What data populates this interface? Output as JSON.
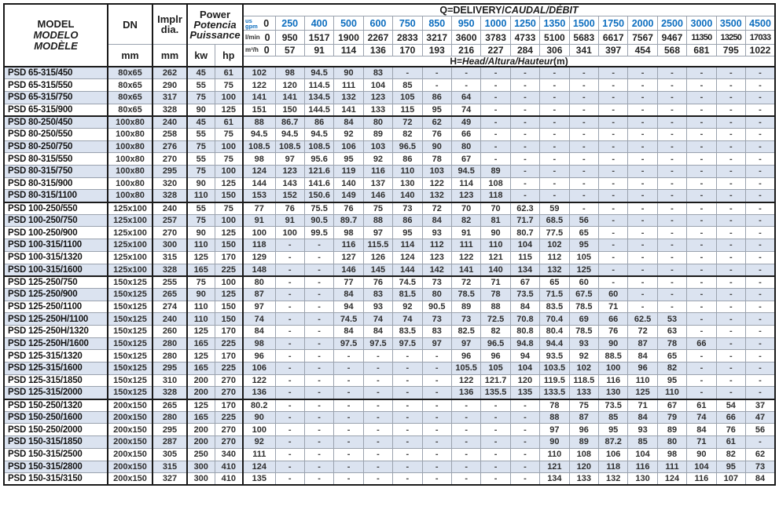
{
  "header": {
    "model_lines": [
      "MODEL",
      "MODELO",
      "MODÈLE"
    ],
    "dn_label": "DN",
    "implr_lines": [
      "Implr",
      "dia."
    ],
    "power_lines": [
      "Power",
      "Potencia",
      "Puissance"
    ],
    "units": {
      "mm": "mm",
      "kw": "kw",
      "hp": "hp"
    },
    "q_title_parts": [
      "Q=DELIVERY/",
      "CAUDAL/DÉBIT"
    ],
    "h_title_parts": [
      "H=",
      "Head/Altura/Hauteur",
      "(m)"
    ],
    "flow_labels": {
      "gpm_top": "us",
      "gpm": "gpm",
      "lmin": "l/min",
      "m3h": "m³/h"
    },
    "q_gpm": [
      "0",
      "250",
      "400",
      "500",
      "600",
      "750",
      "850",
      "950",
      "1000",
      "1250",
      "1350",
      "1500",
      "1750",
      "2000",
      "2500",
      "3000",
      "3500",
      "4500"
    ],
    "q_lmin": [
      "0",
      "950",
      "1517",
      "1900",
      "2267",
      "2833",
      "3217",
      "3600",
      "3783",
      "4733",
      "5100",
      "5683",
      "6617",
      "7567",
      "9467",
      "11350",
      "13250",
      "17033"
    ],
    "q_m3h": [
      "0",
      "57",
      "91",
      "114",
      "136",
      "170",
      "193",
      "216",
      "227",
      "284",
      "306",
      "341",
      "397",
      "454",
      "568",
      "681",
      "795",
      "1022"
    ]
  },
  "colors": {
    "accent_blue": "#0d6ebf",
    "row_shade": "#dbe3f0",
    "border_dark": "#1a1a1a",
    "border_light": "#9aa2ae",
    "text_dark": "#2e2e2e"
  },
  "group_start_indices": [
    4,
    11,
    17,
    27
  ],
  "rows": [
    {
      "model": "PSD 65-315/450",
      "dn": "80x65",
      "dia": "262",
      "kw": "45",
      "hp": "61",
      "h": [
        "102",
        "98",
        "94.5",
        "90",
        "83",
        "-",
        "-",
        "-",
        "-",
        "-",
        "-",
        "-",
        "-",
        "-",
        "-",
        "-",
        "-",
        "-"
      ]
    },
    {
      "model": "PSD 65-315/550",
      "dn": "80x65",
      "dia": "290",
      "kw": "55",
      "hp": "75",
      "h": [
        "122",
        "120",
        "114.5",
        "111",
        "104",
        "85",
        "-",
        "-",
        "-",
        "-",
        "-",
        "-",
        "-",
        "-",
        "-",
        "-",
        "-",
        "-"
      ]
    },
    {
      "model": "PSD 65-315/750",
      "dn": "80x65",
      "dia": "317",
      "kw": "75",
      "hp": "100",
      "h": [
        "141",
        "141",
        "134.5",
        "132",
        "123",
        "105",
        "86",
        "64",
        "-",
        "-",
        "-",
        "-",
        "-",
        "-",
        "-",
        "-",
        "-",
        "-"
      ]
    },
    {
      "model": "PSD 65-315/900",
      "dn": "80x65",
      "dia": "328",
      "kw": "90",
      "hp": "125",
      "h": [
        "151",
        "150",
        "144.5",
        "141",
        "133",
        "115",
        "95",
        "74",
        "-",
        "-",
        "-",
        "-",
        "-",
        "-",
        "-",
        "-",
        "-",
        "-"
      ]
    },
    {
      "model": "PSD 80-250/450",
      "dn": "100x80",
      "dia": "240",
      "kw": "45",
      "hp": "61",
      "h": [
        "88",
        "86.7",
        "86",
        "84",
        "80",
        "72",
        "62",
        "49",
        "-",
        "-",
        "-",
        "-",
        "-",
        "-",
        "-",
        "-",
        "-",
        "-"
      ]
    },
    {
      "model": "PSD 80-250/550",
      "dn": "100x80",
      "dia": "258",
      "kw": "55",
      "hp": "75",
      "h": [
        "94.5",
        "94.5",
        "94.5",
        "92",
        "89",
        "82",
        "76",
        "66",
        "-",
        "-",
        "-",
        "-",
        "-",
        "-",
        "-",
        "-",
        "-",
        "-"
      ]
    },
    {
      "model": "PSD 80-250/750",
      "dn": "100x80",
      "dia": "276",
      "kw": "75",
      "hp": "100",
      "h": [
        "108.5",
        "108.5",
        "108.5",
        "106",
        "103",
        "96.5",
        "90",
        "80",
        "-",
        "-",
        "-",
        "-",
        "-",
        "-",
        "-",
        "-",
        "-",
        "-"
      ]
    },
    {
      "model": "PSD 80-315/550",
      "dn": "100x80",
      "dia": "270",
      "kw": "55",
      "hp": "75",
      "h": [
        "98",
        "97",
        "95.6",
        "95",
        "92",
        "86",
        "78",
        "67",
        "-",
        "-",
        "-",
        "-",
        "-",
        "-",
        "-",
        "-",
        "-",
        "-"
      ]
    },
    {
      "model": "PSD 80-315/750",
      "dn": "100x80",
      "dia": "295",
      "kw": "75",
      "hp": "100",
      "h": [
        "124",
        "123",
        "121.6",
        "119",
        "116",
        "110",
        "103",
        "94.5",
        "89",
        "-",
        "-",
        "-",
        "-",
        "-",
        "-",
        "-",
        "-",
        "-"
      ]
    },
    {
      "model": "PSD 80-315/900",
      "dn": "100x80",
      "dia": "320",
      "kw": "90",
      "hp": "125",
      "h": [
        "144",
        "143",
        "141.6",
        "140",
        "137",
        "130",
        "122",
        "114",
        "108",
        "-",
        "-",
        "-",
        "-",
        "-",
        "-",
        "-",
        "-",
        "-"
      ]
    },
    {
      "model": "PSD 80-315/1100",
      "dn": "100x80",
      "dia": "328",
      "kw": "110",
      "hp": "150",
      "h": [
        "153",
        "152",
        "150.6",
        "149",
        "146",
        "140",
        "132",
        "123",
        "118",
        "-",
        "-",
        "-",
        "-",
        "-",
        "-",
        "-",
        "-",
        "-"
      ]
    },
    {
      "model": "PSD 100-250/550",
      "dn": "125x100",
      "dia": "240",
      "kw": "55",
      "hp": "75",
      "h": [
        "77",
        "76",
        "75.5",
        "76",
        "75",
        "73",
        "72",
        "70",
        "70",
        "62.3",
        "59",
        "-",
        "-",
        "-",
        "-",
        "-",
        "-",
        "-"
      ]
    },
    {
      "model": "PSD 100-250/750",
      "dn": "125x100",
      "dia": "257",
      "kw": "75",
      "hp": "100",
      "h": [
        "91",
        "91",
        "90.5",
        "89.7",
        "88",
        "86",
        "84",
        "82",
        "81",
        "71.7",
        "68.5",
        "56",
        "-",
        "-",
        "-",
        "-",
        "-",
        "-"
      ]
    },
    {
      "model": "PSD 100-250/900",
      "dn": "125x100",
      "dia": "270",
      "kw": "90",
      "hp": "125",
      "h": [
        "100",
        "100",
        "99.5",
        "98",
        "97",
        "95",
        "93",
        "91",
        "90",
        "80.7",
        "77.5",
        "65",
        "-",
        "-",
        "-",
        "-",
        "-",
        "-"
      ]
    },
    {
      "model": "PSD 100-315/1100",
      "dn": "125x100",
      "dia": "300",
      "kw": "110",
      "hp": "150",
      "h": [
        "118",
        "-",
        "-",
        "116",
        "115.5",
        "114",
        "112",
        "111",
        "110",
        "104",
        "102",
        "95",
        "-",
        "-",
        "-",
        "-",
        "-",
        "-"
      ]
    },
    {
      "model": "PSD 100-315/1320",
      "dn": "125x100",
      "dia": "315",
      "kw": "125",
      "hp": "170",
      "h": [
        "129",
        "-",
        "-",
        "127",
        "126",
        "124",
        "123",
        "122",
        "121",
        "115",
        "112",
        "105",
        "-",
        "-",
        "-",
        "-",
        "-",
        "-"
      ]
    },
    {
      "model": "PSD 100-315/1600",
      "dn": "125x100",
      "dia": "328",
      "kw": "165",
      "hp": "225",
      "h": [
        "148",
        "-",
        "-",
        "146",
        "145",
        "144",
        "142",
        "141",
        "140",
        "134",
        "132",
        "125",
        "-",
        "-",
        "-",
        "-",
        "-",
        "-"
      ]
    },
    {
      "model": "PSD 125-250/750",
      "dn": "150x125",
      "dia": "255",
      "kw": "75",
      "hp": "100",
      "h": [
        "80",
        "-",
        "-",
        "77",
        "76",
        "74.5",
        "73",
        "72",
        "71",
        "67",
        "65",
        "60",
        "-",
        "-",
        "-",
        "-",
        "-",
        "-"
      ]
    },
    {
      "model": "PSD 125-250/900",
      "dn": "150x125",
      "dia": "265",
      "kw": "90",
      "hp": "125",
      "h": [
        "87",
        "-",
        "-",
        "84",
        "83",
        "81.5",
        "80",
        "78.5",
        "78",
        "73.5",
        "71.5",
        "67.5",
        "60",
        "-",
        "-",
        "-",
        "-",
        "-"
      ]
    },
    {
      "model": "PSD 125-250/1100",
      "dn": "150x125",
      "dia": "274",
      "kw": "110",
      "hp": "150",
      "h": [
        "97",
        "-",
        "-",
        "94",
        "93",
        "92",
        "90.5",
        "89",
        "88",
        "84",
        "83.5",
        "78.5",
        "71",
        "-",
        "-",
        "-",
        "-",
        "-"
      ]
    },
    {
      "model": "PSD 125-250H/1100",
      "dn": "150x125",
      "dia": "240",
      "kw": "110",
      "hp": "150",
      "h": [
        "74",
        "-",
        "-",
        "74.5",
        "74",
        "74",
        "73",
        "73",
        "72.5",
        "70.8",
        "70.4",
        "69",
        "66",
        "62.5",
        "53",
        "-",
        "-",
        "-"
      ]
    },
    {
      "model": "PSD 125-250H/1320",
      "dn": "150x125",
      "dia": "260",
      "kw": "125",
      "hp": "170",
      "h": [
        "84",
        "-",
        "-",
        "84",
        "84",
        "83.5",
        "83",
        "82.5",
        "82",
        "80.8",
        "80.4",
        "78.5",
        "76",
        "72",
        "63",
        "-",
        "-",
        "-"
      ]
    },
    {
      "model": "PSD 125-250H/1600",
      "dn": "150x125",
      "dia": "280",
      "kw": "165",
      "hp": "225",
      "h": [
        "98",
        "-",
        "-",
        "97.5",
        "97.5",
        "97.5",
        "97",
        "97",
        "96.5",
        "94.8",
        "94.4",
        "93",
        "90",
        "87",
        "78",
        "66",
        "-",
        "-"
      ]
    },
    {
      "model": "PSD 125-315/1320",
      "dn": "150x125",
      "dia": "280",
      "kw": "125",
      "hp": "170",
      "h": [
        "96",
        "-",
        "-",
        "-",
        "-",
        "-",
        "-",
        "96",
        "96",
        "94",
        "93.5",
        "92",
        "88.5",
        "84",
        "65",
        "-",
        "-",
        "-"
      ]
    },
    {
      "model": "PSD 125-315/1600",
      "dn": "150x125",
      "dia": "295",
      "kw": "165",
      "hp": "225",
      "h": [
        "106",
        "-",
        "-",
        "-",
        "-",
        "-",
        "-",
        "105.5",
        "105",
        "104",
        "103.5",
        "102",
        "100",
        "96",
        "82",
        "-",
        "-",
        "-"
      ]
    },
    {
      "model": "PSD 125-315/1850",
      "dn": "150x125",
      "dia": "310",
      "kw": "200",
      "hp": "270",
      "h": [
        "122",
        "-",
        "-",
        "-",
        "-",
        "-",
        "-",
        "122",
        "121.7",
        "120",
        "119.5",
        "118.5",
        "116",
        "110",
        "95",
        "-",
        "-",
        "-"
      ]
    },
    {
      "model": "PSD 125-315/2000",
      "dn": "150x125",
      "dia": "328",
      "kw": "200",
      "hp": "270",
      "h": [
        "136",
        "-",
        "-",
        "-",
        "-",
        "-",
        "-",
        "136",
        "135.5",
        "135",
        "133.5",
        "133",
        "130",
        "125",
        "110",
        "-",
        "-",
        "-"
      ]
    },
    {
      "model": "PSD 150-250/1320",
      "dn": "200x150",
      "dia": "265",
      "kw": "125",
      "hp": "170",
      "h": [
        "80.2",
        "-",
        "-",
        "-",
        "-",
        "-",
        "-",
        "-",
        "-",
        "-",
        "78",
        "75",
        "73.5",
        "71",
        "67",
        "61",
        "54",
        "37"
      ]
    },
    {
      "model": "PSD 150-250/1600",
      "dn": "200x150",
      "dia": "280",
      "kw": "165",
      "hp": "225",
      "h": [
        "90",
        "-",
        "-",
        "-",
        "-",
        "-",
        "-",
        "-",
        "-",
        "-",
        "88",
        "87",
        "85",
        "84",
        "79",
        "74",
        "66",
        "47"
      ]
    },
    {
      "model": "PSD 150-250/2000",
      "dn": "200x150",
      "dia": "295",
      "kw": "200",
      "hp": "270",
      "h": [
        "100",
        "-",
        "-",
        "-",
        "-",
        "-",
        "-",
        "-",
        "-",
        "-",
        "97",
        "96",
        "95",
        "93",
        "89",
        "84",
        "76",
        "56"
      ]
    },
    {
      "model": "PSD 150-315/1850",
      "dn": "200x150",
      "dia": "287",
      "kw": "200",
      "hp": "270",
      "h": [
        "92",
        "-",
        "-",
        "-",
        "-",
        "-",
        "-",
        "-",
        "-",
        "-",
        "90",
        "89",
        "87.2",
        "85",
        "80",
        "71",
        "61",
        "-"
      ]
    },
    {
      "model": "PSD 150-315/2500",
      "dn": "200x150",
      "dia": "305",
      "kw": "250",
      "hp": "340",
      "h": [
        "111",
        "-",
        "-",
        "-",
        "-",
        "-",
        "-",
        "-",
        "-",
        "-",
        "110",
        "108",
        "106",
        "104",
        "98",
        "90",
        "82",
        "62"
      ]
    },
    {
      "model": "PSD 150-315/2800",
      "dn": "200x150",
      "dia": "315",
      "kw": "300",
      "hp": "410",
      "h": [
        "124",
        "-",
        "-",
        "-",
        "-",
        "-",
        "-",
        "-",
        "-",
        "-",
        "121",
        "120",
        "118",
        "116",
        "111",
        "104",
        "95",
        "73"
      ]
    },
    {
      "model": "PSD 150-315/3150",
      "dn": "200x150",
      "dia": "327",
      "kw": "300",
      "hp": "410",
      "h": [
        "135",
        "-",
        "-",
        "-",
        "-",
        "-",
        "-",
        "-",
        "-",
        "-",
        "134",
        "133",
        "132",
        "130",
        "124",
        "116",
        "107",
        "84"
      ]
    }
  ]
}
